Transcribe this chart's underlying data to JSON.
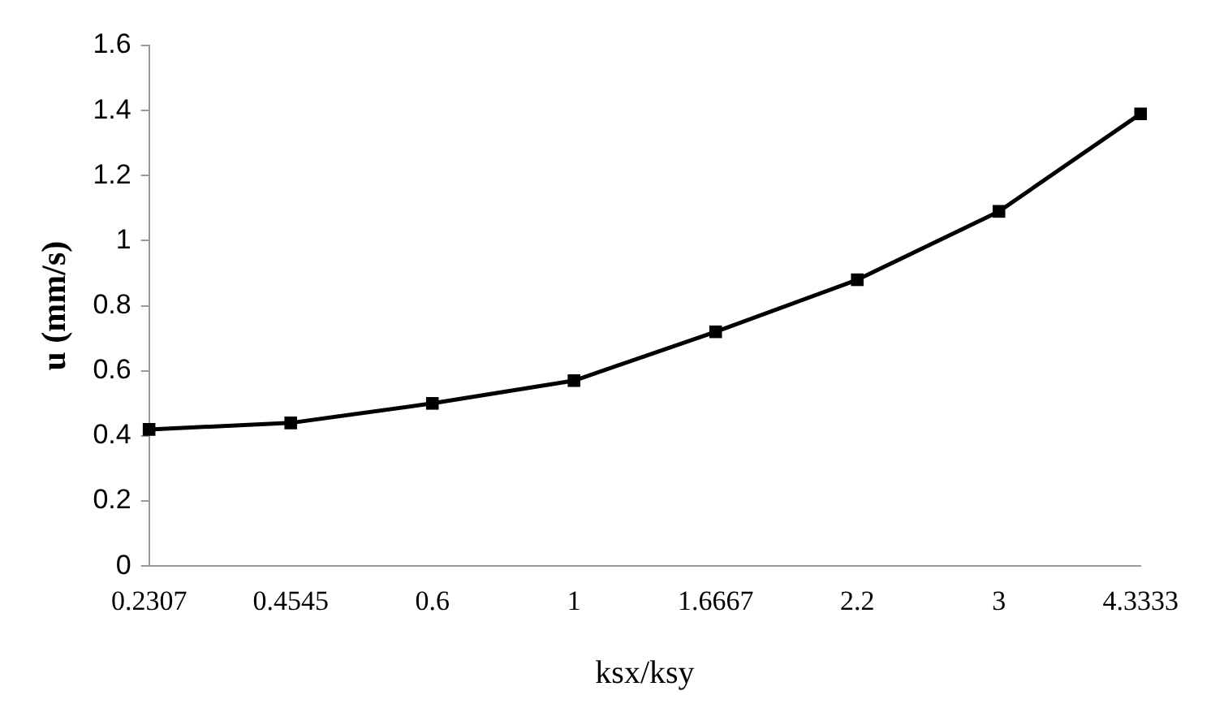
{
  "chart_data": {
    "type": "line",
    "xlabel": "ksx/ksy",
    "ylabel": "u (mm/s)",
    "categories": [
      "0.2307",
      "0.4545",
      "0.6",
      "1",
      "1.6667",
      "2.2",
      "3",
      "4.3333"
    ],
    "series": [
      {
        "color": "#000000",
        "values": [
          0.42,
          0.44,
          0.5,
          0.57,
          0.72,
          0.88,
          1.09,
          1.39
        ]
      }
    ],
    "ylim": [
      0,
      1.6
    ],
    "yticks": [
      0,
      0.2,
      0.4,
      0.6,
      0.8,
      1,
      1.2,
      1.4,
      1.6
    ],
    "grid": false,
    "legend": false,
    "marker": "square",
    "line_style": "solid"
  }
}
